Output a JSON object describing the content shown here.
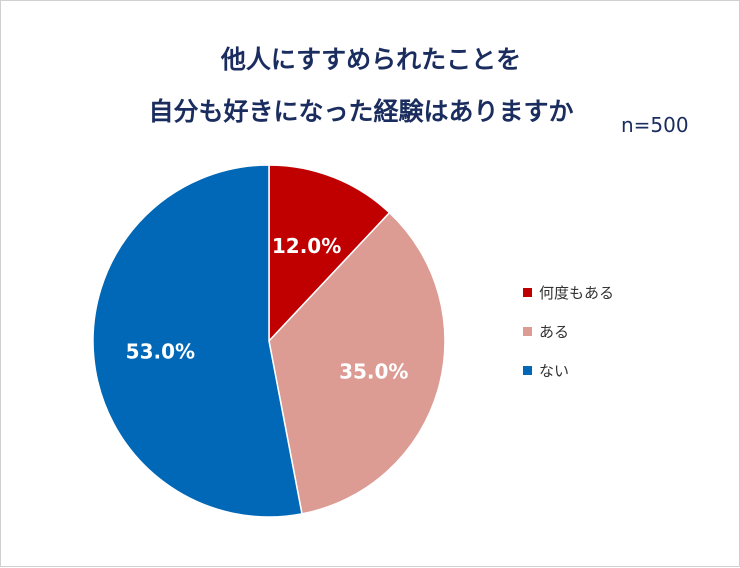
{
  "title_line1": "他人にすすめられたことを",
  "title_line2": "自分も好きになった経験はありますか",
  "sample_size": "n=500",
  "chart_data": {
    "type": "pie",
    "title": "他人にすすめられたことを自分も好きになった経験はありますか",
    "categories": [
      "何度もある",
      "ある",
      "ない"
    ],
    "values": [
      12.0,
      35.0,
      53.0
    ],
    "labels": [
      "12.0%",
      "35.0%",
      "53.0%"
    ],
    "colors": [
      "#c00000",
      "#dc9c94",
      "#0068b7"
    ],
    "label_color": "#ffffff",
    "start_angle": "12 o'clock",
    "direction": "clockwise",
    "legend_position": "right"
  }
}
